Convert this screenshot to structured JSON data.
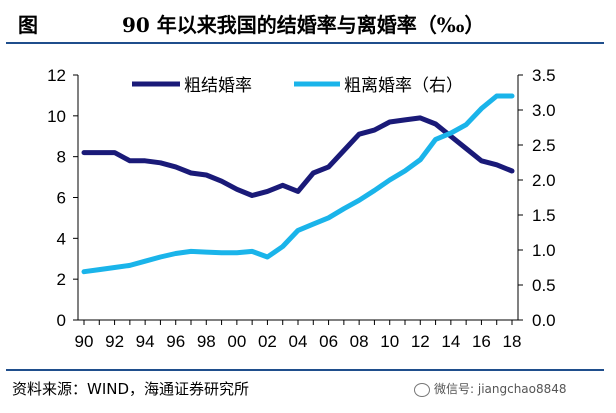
{
  "header": {
    "figure_label": "图",
    "title": "90 年以来我国的结婚率与离婚率（‰）"
  },
  "footer": {
    "source": "资料来源：WIND，海通证券研究所",
    "watermark": "微信号: jiangchao8848"
  },
  "colors": {
    "marriage": "#1a1a78",
    "divorce": "#1ab4ea",
    "rule": "#1f4e8c",
    "axis": "#000000"
  },
  "chart_data": {
    "type": "line",
    "title": "90 年以来我国的结婚率与离婚率（‰）",
    "x": [
      1990,
      1991,
      1992,
      1993,
      1994,
      1995,
      1996,
      1997,
      1998,
      1999,
      2000,
      2001,
      2002,
      2003,
      2004,
      2005,
      2006,
      2007,
      2008,
      2009,
      2010,
      2011,
      2012,
      2013,
      2014,
      2015,
      2016,
      2017,
      2018
    ],
    "x_tick_labels": [
      "90",
      "92",
      "94",
      "96",
      "98",
      "00",
      "02",
      "04",
      "06",
      "08",
      "10",
      "12",
      "14",
      "16",
      "18"
    ],
    "y_left_ticks": [
      "0",
      "2",
      "4",
      "6",
      "8",
      "10",
      "12"
    ],
    "y_right_ticks": [
      "0.0",
      "0.5",
      "1.0",
      "1.5",
      "2.0",
      "2.5",
      "3.0",
      "3.5"
    ],
    "y_left_lim": [
      0,
      12
    ],
    "y_right_lim": [
      0,
      3.5
    ],
    "legend_position": "top",
    "grid": false,
    "series": [
      {
        "name": "粗结婚率",
        "axis": "left",
        "values": [
          8.2,
          8.2,
          8.2,
          7.8,
          7.8,
          7.7,
          7.5,
          7.2,
          7.1,
          6.8,
          6.4,
          6.1,
          6.3,
          6.6,
          6.3,
          7.2,
          7.5,
          8.3,
          9.1,
          9.3,
          9.7,
          9.8,
          9.9,
          9.6,
          9.0,
          8.4,
          7.8,
          7.6,
          7.3
        ]
      },
      {
        "name": "粗离婚率（右）",
        "axis": "right",
        "values": [
          0.69,
          0.72,
          0.75,
          0.78,
          0.84,
          0.9,
          0.95,
          0.98,
          0.97,
          0.96,
          0.96,
          0.98,
          0.9,
          1.05,
          1.28,
          1.37,
          1.46,
          1.59,
          1.71,
          1.85,
          2.0,
          2.13,
          2.29,
          2.58,
          2.67,
          2.79,
          3.02,
          3.2,
          3.2
        ]
      }
    ]
  }
}
